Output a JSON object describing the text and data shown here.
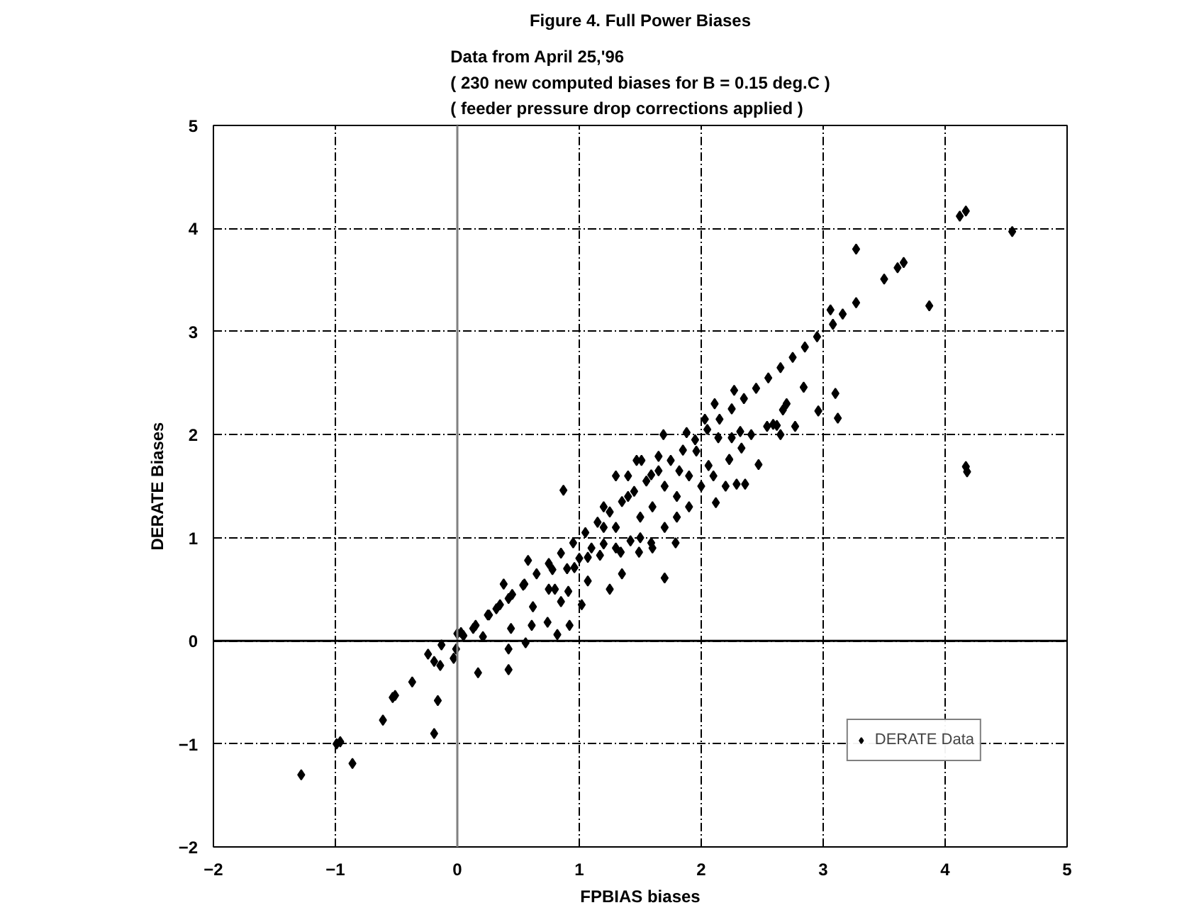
{
  "chart_data": {
    "type": "scatter",
    "title": "Figure 4. Full Power Biases",
    "subtitle": "Data from April 25,'96\n( 230 new computed biases for B = 0.15 deg.C )\n( feeder pressure drop corrections applied )",
    "xlabel": "FPBIAS biases",
    "ylabel": "DERATE Biases",
    "xlim": [
      -2,
      5
    ],
    "ylim": [
      -2,
      5
    ],
    "xticks": [
      -2,
      -1,
      0,
      1,
      2,
      3,
      4,
      5
    ],
    "yticks": [
      -2,
      -1,
      0,
      1,
      2,
      3,
      4,
      5
    ],
    "grid": true,
    "legend": "bottom right",
    "marker": "diamond",
    "ref_lines": [
      {
        "axis": "x",
        "value": 0,
        "color": "#808080"
      },
      {
        "axis": "y",
        "value": 0,
        "color": "#000000"
      }
    ],
    "series": [
      {
        "name": "DERATE Data",
        "color": "#000000",
        "x": [
          4.12,
          4.17,
          4.55,
          3.27,
          3.5,
          3.61,
          3.66,
          3.87,
          3.06,
          3.08,
          3.16,
          3.27,
          2.84,
          3.1,
          3.12,
          2.96,
          2.7,
          2.67,
          2.77,
          2.59,
          2.62,
          2.54,
          2.65,
          2.41,
          2.47,
          4.17,
          4.18,
          2.29,
          2.36,
          1.7,
          1.79,
          1.59,
          1.49,
          2.23,
          2.12,
          -1.28,
          -0.99,
          -0.96,
          -0.86,
          -0.61,
          -0.53,
          -0.51,
          -0.37,
          -0.19,
          -0.16,
          -0.24,
          -0.19,
          -0.14,
          -0.13,
          -0.03,
          -0.01,
          0.0,
          0.03,
          0.17,
          0.21,
          0.13,
          0.42,
          0.42,
          0.44,
          0.56,
          0.58,
          0.38,
          0.26,
          0.32,
          0.42,
          0.54,
          0.62,
          0.61,
          0.74,
          0.75,
          0.78,
          0.82,
          0.87,
          0.85,
          0.91,
          0.92,
          0.96,
          1.02,
          1.07,
          1.07,
          1.17,
          1.25,
          1.3,
          1.35,
          1.34,
          1.42,
          1.2,
          1.47,
          1.69,
          1.88,
          2.11,
          2.27,
          2.03,
          2.14,
          2.25,
          2.33,
          2.23,
          2.06,
          1.96,
          1.82,
          1.65,
          1.51,
          1.59,
          2.32,
          1.2,
          1.3,
          1.4,
          1.5,
          1.6,
          1.7,
          1.8,
          1.9,
          1.5,
          1.6,
          1.3,
          1.1,
          1.0,
          1.8,
          1.9,
          2.0,
          2.1,
          2.2,
          1.4,
          1.2,
          1.7,
          0.9,
          0.8,
          0.05,
          0.15,
          0.25,
          0.35,
          0.45,
          0.55,
          0.65,
          0.75,
          0.85,
          0.95,
          1.05,
          1.15,
          1.25,
          1.35,
          1.45,
          1.55,
          1.65,
          1.75,
          1.85,
          1.95,
          2.05,
          2.15,
          2.25,
          2.35,
          2.45,
          2.55,
          2.65,
          2.75,
          2.85,
          2.95
        ],
        "values": [
          4.12,
          4.17,
          3.97,
          3.8,
          3.51,
          3.62,
          3.67,
          3.25,
          3.21,
          3.07,
          3.17,
          3.28,
          2.46,
          2.4,
          2.16,
          2.23,
          2.3,
          2.24,
          2.08,
          2.1,
          2.09,
          2.08,
          2.0,
          2.0,
          1.71,
          1.69,
          1.64,
          1.52,
          1.52,
          0.61,
          0.95,
          0.95,
          0.86,
          1.76,
          1.34,
          -1.3,
          -1.0,
          -0.98,
          -1.19,
          -0.77,
          -0.55,
          -0.53,
          -0.4,
          -0.9,
          -0.58,
          -0.13,
          -0.2,
          -0.24,
          -0.04,
          -0.17,
          -0.08,
          0.07,
          0.08,
          -0.31,
          0.04,
          0.12,
          -0.28,
          -0.08,
          0.12,
          -0.02,
          0.78,
          0.55,
          0.25,
          0.31,
          0.41,
          0.54,
          0.33,
          0.15,
          0.18,
          0.5,
          0.69,
          0.06,
          1.46,
          0.38,
          0.48,
          0.15,
          0.71,
          0.35,
          0.81,
          0.58,
          0.83,
          0.5,
          1.6,
          0.65,
          0.86,
          0.97,
          0.94,
          1.75,
          2.0,
          2.02,
          2.3,
          2.43,
          2.15,
          1.97,
          1.97,
          1.87,
          1.76,
          1.7,
          1.84,
          1.65,
          1.79,
          1.75,
          1.61,
          2.03,
          1.3,
          1.1,
          1.4,
          1.2,
          1.3,
          1.5,
          1.4,
          1.6,
          1.0,
          0.9,
          0.9,
          0.9,
          0.8,
          1.2,
          1.3,
          1.5,
          1.6,
          1.5,
          1.6,
          1.1,
          1.1,
          0.7,
          0.5,
          0.05,
          0.15,
          0.25,
          0.35,
          0.45,
          0.55,
          0.65,
          0.75,
          0.85,
          0.95,
          1.05,
          1.15,
          1.25,
          1.35,
          1.45,
          1.55,
          1.65,
          1.75,
          1.85,
          1.95,
          2.05,
          2.15,
          2.25,
          2.35,
          2.45,
          2.55,
          2.65,
          2.75,
          2.85,
          2.95
        ]
      }
    ]
  }
}
